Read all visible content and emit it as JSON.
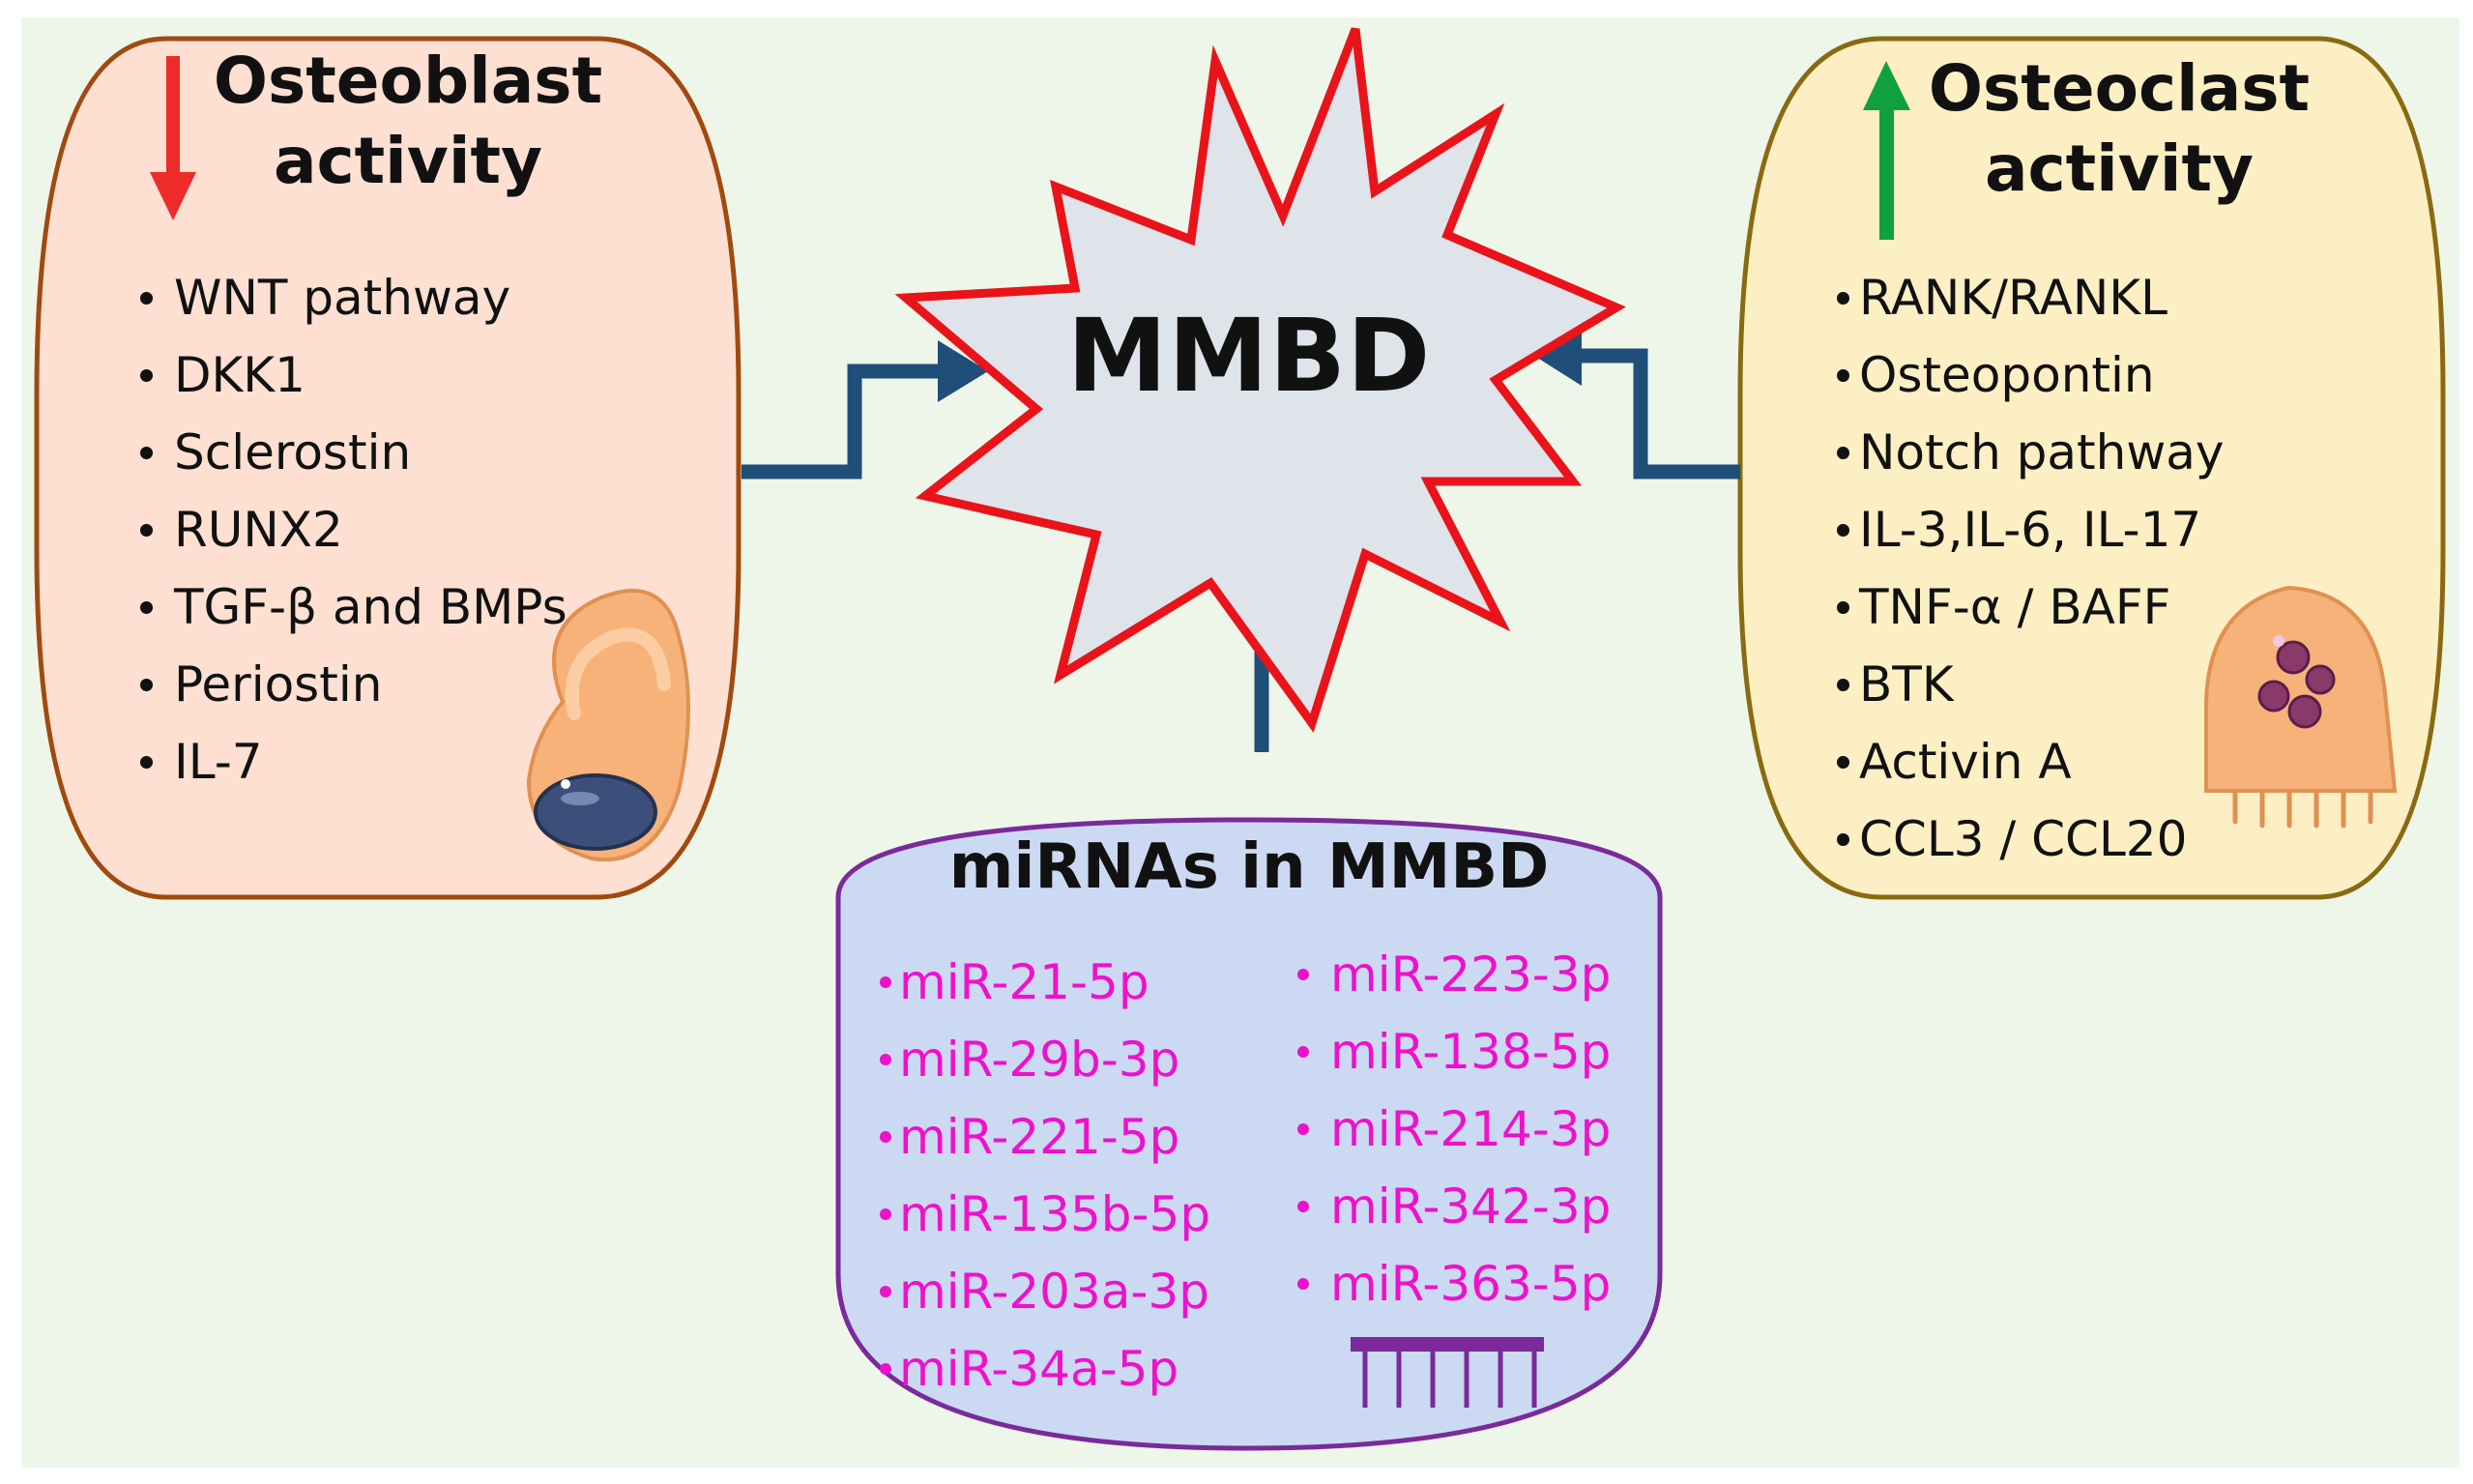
{
  "center": {
    "label": "MMBD"
  },
  "osteoblast": {
    "title_line1": "Osteoblast",
    "title_line2": "activity",
    "direction": "down",
    "items": [
      "WNT pathway",
      "DKK1",
      "Sclerostin",
      "RUNX2",
      "TGF-β and BMPs",
      "Periostin",
      "IL-7"
    ]
  },
  "osteoclast": {
    "title_line1": "Osteoclast",
    "title_line2": "activity",
    "direction": "up",
    "items": [
      "RANK/RANKL",
      "Osteopontin",
      "Notch pathway",
      "IL-3,IL-6, IL-17",
      "TNF-α / BAFF",
      "BTK",
      "Activin A",
      "CCL3 / CCL20"
    ]
  },
  "mirnas": {
    "title": "miRNAs in MMBD",
    "left_column": [
      "miR-21-5p",
      "miR-29b-3p",
      "miR-221-5p",
      "miR-135b-5p",
      "miR-203a-3p",
      "miR-34a-5p"
    ],
    "right_column": [
      "miR-223-3p",
      "miR-138-5p",
      "miR-214-3p",
      "miR-342-3p",
      "miR-363-5p"
    ]
  },
  "colors": {
    "background": "#eef6e9",
    "osteoblast_fill": "#fde0d2",
    "osteoblast_border": "#a04a10",
    "osteoclast_fill": "#fcefc4",
    "osteoclast_border": "#8a6a10",
    "mirna_fill": "#ccd9f2",
    "mirna_border": "#7a2a9a",
    "mirna_text": "#ee11cc",
    "star_fill": "#dfe3ea",
    "star_border": "#e8141a",
    "connector": "#1f4e79",
    "down_arrow": "#ee2b2b",
    "up_arrow": "#10a040"
  }
}
